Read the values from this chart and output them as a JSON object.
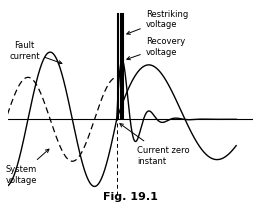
{
  "title": "Fig. 19.1",
  "background_color": "#ffffff",
  "labels": {
    "fault_current": "Fault\ncurrent",
    "system_voltage": "System\nvoltage",
    "restriking_voltage": "Restriking\nvoltage",
    "recovery_voltage": "Recovery\nvoltage",
    "current_zero": "Current zero\ninstant"
  },
  "xlim": [
    -3.2,
    4.0
  ],
  "ylim": [
    -2.0,
    2.8
  ],
  "fig_width": 2.56,
  "fig_height": 2.07,
  "dpi": 100,
  "title_fontsize": 8,
  "label_fontsize": 6.0
}
